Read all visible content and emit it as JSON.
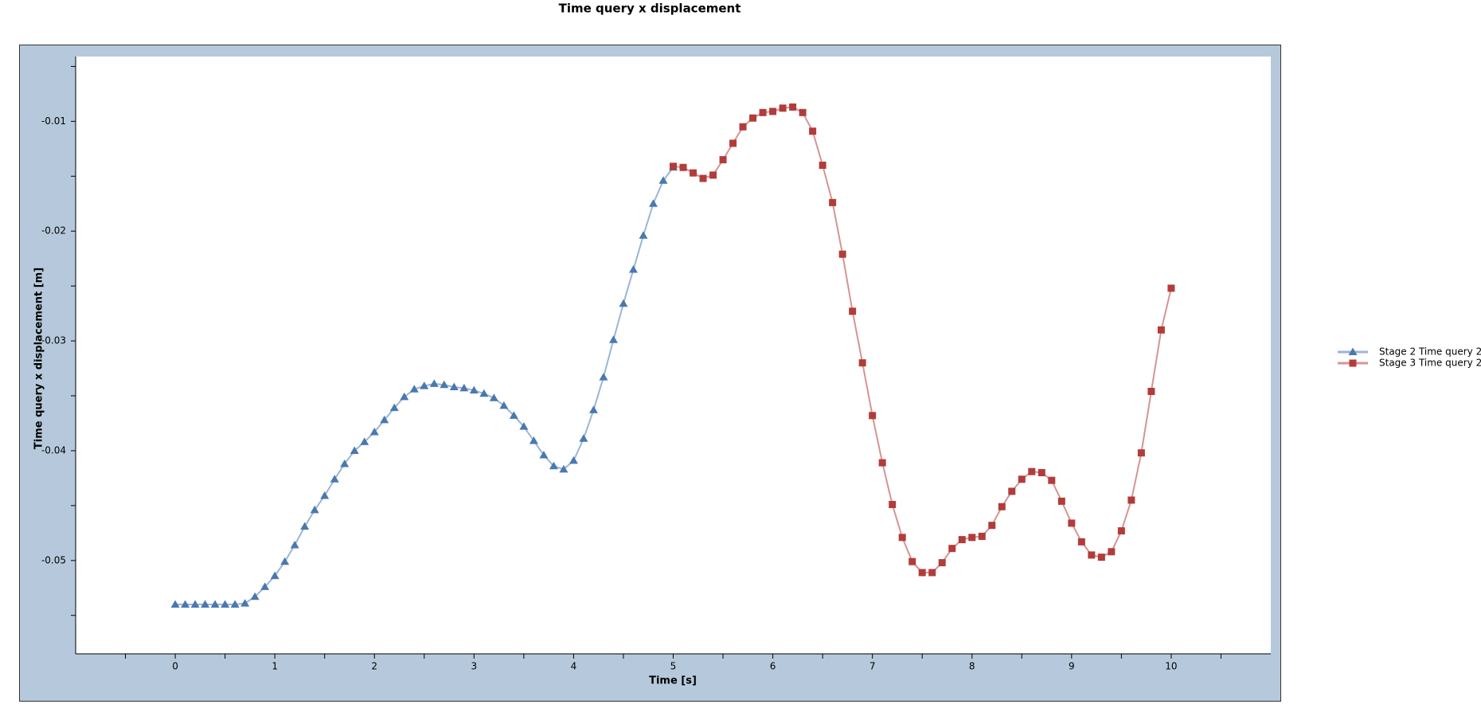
{
  "chart_data": {
    "type": "line",
    "title": "Time query x displacement",
    "x_label": "Time [s]",
    "y_label": "Time query x displacement [m]",
    "xlim": [
      -1,
      11
    ],
    "ylim": [
      -0.0585,
      -0.0041
    ],
    "xticks": [
      0,
      1,
      2,
      3,
      4,
      5,
      6,
      7,
      8,
      9,
      10
    ],
    "yticks": [
      -0.01,
      -0.02,
      -0.03,
      -0.04,
      -0.05
    ],
    "legend": "right",
    "series": [
      {
        "name": "Stage 2 Time query 2",
        "color": "#4a78b0",
        "marker": "triangle",
        "x": [
          0,
          0.1,
          0.2,
          0.3,
          0.4,
          0.5,
          0.6,
          0.7,
          0.8,
          0.9,
          1,
          1.1,
          1.2,
          1.3,
          1.4,
          1.5,
          1.6,
          1.7,
          1.8,
          1.9,
          2,
          2.1,
          2.2,
          2.3,
          2.4,
          2.5,
          2.6,
          2.7,
          2.8,
          2.9,
          3,
          3.1,
          3.2,
          3.3,
          3.4,
          3.5,
          3.6,
          3.7,
          3.8,
          3.9,
          4,
          4.1,
          4.2,
          4.3,
          4.4,
          4.5,
          4.6,
          4.7,
          4.8,
          4.9,
          5
        ],
        "values": [
          -0.054,
          -0.054,
          -0.054,
          -0.054,
          -0.054,
          -0.054,
          -0.054,
          -0.0539,
          -0.0533,
          -0.0524,
          -0.0514,
          -0.0501,
          -0.0486,
          -0.0469,
          -0.0454,
          -0.0441,
          -0.0426,
          -0.0412,
          -0.04,
          -0.0392,
          -0.0383,
          -0.0372,
          -0.0361,
          -0.0351,
          -0.0344,
          -0.0341,
          -0.0339,
          -0.034,
          -0.0342,
          -0.0343,
          -0.0345,
          -0.0348,
          -0.0352,
          -0.0359,
          -0.0368,
          -0.0378,
          -0.0391,
          -0.0404,
          -0.0414,
          -0.0417,
          -0.0409,
          -0.0389,
          -0.0363,
          -0.0333,
          -0.0299,
          -0.0266,
          -0.0235,
          -0.0204,
          -0.0175,
          -0.0154,
          -0.0142
        ]
      },
      {
        "name": "Stage 3 Time query 2",
        "color": "#b23c3a",
        "marker": "square",
        "x": [
          5,
          5.1,
          5.2,
          5.3,
          5.4,
          5.5,
          5.6,
          5.7,
          5.8,
          5.9,
          6,
          6.1,
          6.2,
          6.3,
          6.4,
          6.5,
          6.6,
          6.7,
          6.8,
          6.9,
          7,
          7.1,
          7.2,
          7.3,
          7.4,
          7.5,
          7.6,
          7.7,
          7.8,
          7.9,
          8,
          8.1,
          8.2,
          8.3,
          8.4,
          8.5,
          8.6,
          8.7,
          8.8,
          8.9,
          9,
          9.1,
          9.2,
          9.3,
          9.4,
          9.5,
          9.6,
          9.7,
          9.8,
          9.9,
          10
        ],
        "values": [
          -0.0141,
          -0.0142,
          -0.0147,
          -0.0152,
          -0.0149,
          -0.0135,
          -0.012,
          -0.0105,
          -0.0097,
          -0.0092,
          -0.0091,
          -0.0088,
          -0.0087,
          -0.0092,
          -0.0109,
          -0.014,
          -0.0174,
          -0.0221,
          -0.0273,
          -0.032,
          -0.0368,
          -0.0411,
          -0.0449,
          -0.0479,
          -0.0501,
          -0.0511,
          -0.0511,
          -0.0502,
          -0.0489,
          -0.0481,
          -0.0479,
          -0.0478,
          -0.0468,
          -0.0451,
          -0.0437,
          -0.0426,
          -0.0419,
          -0.042,
          -0.0427,
          -0.0446,
          -0.0466,
          -0.0483,
          -0.0495,
          -0.0497,
          -0.0492,
          -0.0473,
          -0.0445,
          -0.0402,
          -0.0346,
          -0.029,
          -0.0252
        ]
      }
    ]
  }
}
